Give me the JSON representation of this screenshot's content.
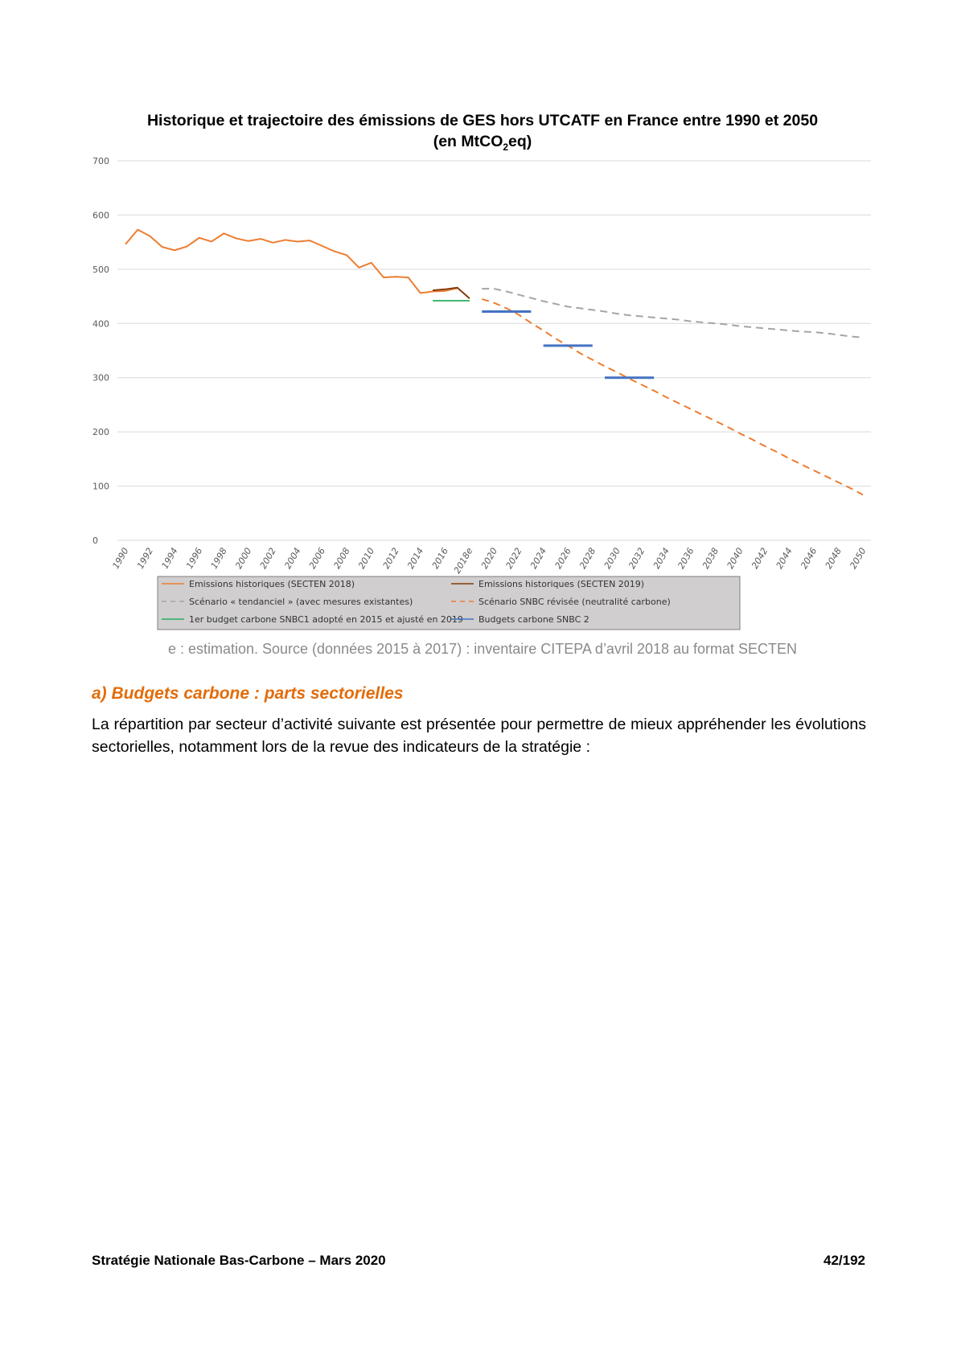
{
  "chart_data": {
    "type": "line",
    "title": "Historique et trajectoire des émissions  de GES hors UTCATF en France entre 1990 et 2050",
    "subtitle_prefix": "(en MtCO",
    "subtitle_sub": "2",
    "subtitle_suffix": "eq)",
    "xlim": [
      1990,
      2050
    ],
    "ylim": [
      0,
      700
    ],
    "y_ticks": [
      "0",
      "100",
      "200",
      "300",
      "400",
      "500",
      "600",
      "700"
    ],
    "x_ticks": [
      "1990",
      "1992",
      "1994",
      "1996",
      "1998",
      "2000",
      "2002",
      "2004",
      "2006",
      "2008",
      "2010",
      "2012",
      "2014",
      "2016",
      "2018e",
      "2020",
      "2022",
      "2024",
      "2026",
      "2028",
      "2030",
      "2032",
      "2034",
      "2036",
      "2038",
      "2040",
      "2042",
      "2044",
      "2046",
      "2048",
      "2050"
    ],
    "grid": true,
    "legend_position": "bottom",
    "series": [
      {
        "name": "Emissions historiques (SECTEN 2018)",
        "color": "#ed7d31",
        "style": "solid",
        "x": [
          1990,
          1991,
          1992,
          1993,
          1994,
          1995,
          1996,
          1997,
          1998,
          1999,
          2000,
          2001,
          2002,
          2003,
          2004,
          2005,
          2006,
          2007,
          2008,
          2009,
          2010,
          2011,
          2012,
          2013,
          2014,
          2015,
          2016,
          2017
        ],
        "y": [
          546,
          573,
          561,
          541,
          535,
          542,
          558,
          551,
          566,
          557,
          552,
          556,
          549,
          554,
          551,
          553,
          543,
          533,
          526,
          503,
          512,
          485,
          486,
          485,
          456,
          459,
          460,
          465
        ]
      },
      {
        "name": "Emissions historiques (SECTEN 2019)",
        "color": "#843c0c",
        "style": "solid",
        "x": [
          2015,
          2016,
          2017,
          2018
        ],
        "y": [
          461,
          463,
          466,
          446
        ]
      },
      {
        "name": "Scénario « tendanciel » (avec mesures existantes)",
        "color": "#a5a5a5",
        "style": "dashed",
        "x": [
          2019,
          2020,
          2021,
          2022,
          2023,
          2024,
          2025,
          2026,
          2027,
          2028,
          2029,
          2030,
          2031,
          2032,
          2033,
          2034,
          2035,
          2036,
          2037,
          2038,
          2039,
          2040,
          2041,
          2042,
          2043,
          2044,
          2045,
          2046,
          2047,
          2048,
          2049,
          2050
        ],
        "y": [
          464,
          464,
          459,
          453,
          447,
          441,
          436,
          431,
          428,
          425,
          422,
          418,
          415,
          413,
          411,
          409,
          407,
          404,
          402,
          400,
          398,
          395,
          393,
          391,
          389,
          387,
          385,
          384,
          382,
          379,
          376,
          374
        ]
      },
      {
        "name": "Scénario SNBC révisée (neutralité carbone)",
        "color": "#ed7d31",
        "style": "dashed",
        "x": [
          2019,
          2020,
          2021,
          2022,
          2023,
          2024,
          2025,
          2026,
          2027,
          2028,
          2029,
          2030,
          2031,
          2032,
          2033,
          2034,
          2035,
          2036,
          2037,
          2038,
          2039,
          2040,
          2041,
          2042,
          2043,
          2044,
          2045,
          2046,
          2047,
          2048,
          2049,
          2050
        ],
        "y": [
          445,
          438,
          428,
          416,
          401,
          387,
          372,
          359,
          345,
          333,
          321,
          310,
          298,
          287,
          276,
          264,
          253,
          242,
          231,
          220,
          209,
          197,
          186,
          174,
          163,
          151,
          140,
          129,
          118,
          107,
          96,
          84
        ]
      },
      {
        "name": "1er budget carbone SNBC1 adopté en 2015 et ajusté en 2019",
        "color": "#27ae60",
        "style": "solid",
        "segments": [
          {
            "x": [
              2015,
              2018
            ],
            "y": 442
          }
        ]
      },
      {
        "name": "Budgets carbone SNBC 2",
        "color": "#4472c4",
        "style": "solid",
        "segments": [
          {
            "x": [
              2019,
              2023
            ],
            "y": 422
          },
          {
            "x": [
              2024,
              2028
            ],
            "y": 359
          },
          {
            "x": [
              2029,
              2033
            ],
            "y": 300
          }
        ]
      }
    ]
  },
  "caption": "e : estimation. Source (données 2015 à 2017) : inventaire CITEPA d’avril 2018 au format SECTEN",
  "section_heading": "a) Budgets carbone : parts sectorielles",
  "body_paragraph": "La répartition par secteur d’activité suivante est présentée pour permettre de mieux appréhender les évolutions sectorielles, notamment lors de la revue des indicateurs de la stratégie :",
  "footer": {
    "left": "Stratégie Nationale Bas-Carbone – Mars 2020",
    "right": "42/192"
  }
}
